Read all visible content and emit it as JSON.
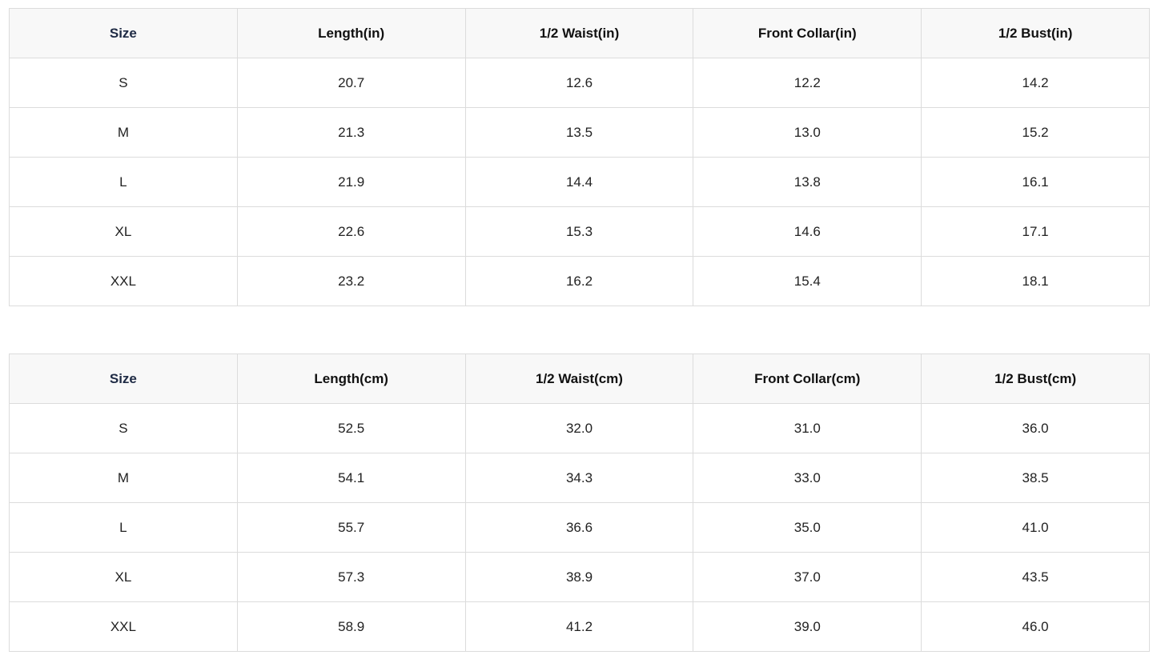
{
  "tables": [
    {
      "headers": [
        "Size",
        "Length(in)",
        "1/2 Waist(in)",
        "Front Collar(in)",
        "1/2 Bust(in)"
      ],
      "rows": [
        [
          "S",
          "20.7",
          "12.6",
          "12.2",
          "14.2"
        ],
        [
          "M",
          "21.3",
          "13.5",
          "13.0",
          "15.2"
        ],
        [
          "L",
          "21.9",
          "14.4",
          "13.8",
          "16.1"
        ],
        [
          "XL",
          "22.6",
          "15.3",
          "14.6",
          "17.1"
        ],
        [
          "XXL",
          "23.2",
          "16.2",
          "15.4",
          "18.1"
        ]
      ]
    },
    {
      "headers": [
        "Size",
        "Length(cm)",
        "1/2 Waist(cm)",
        "Front Collar(cm)",
        "1/2 Bust(cm)"
      ],
      "rows": [
        [
          "S",
          "52.5",
          "32.0",
          "31.0",
          "36.0"
        ],
        [
          "M",
          "54.1",
          "34.3",
          "33.0",
          "38.5"
        ],
        [
          "L",
          "55.7",
          "36.6",
          "35.0",
          "41.0"
        ],
        [
          "XL",
          "57.3",
          "38.9",
          "37.0",
          "43.5"
        ],
        [
          "XXL",
          "58.9",
          "41.2",
          "39.0",
          "46.0"
        ]
      ]
    }
  ]
}
